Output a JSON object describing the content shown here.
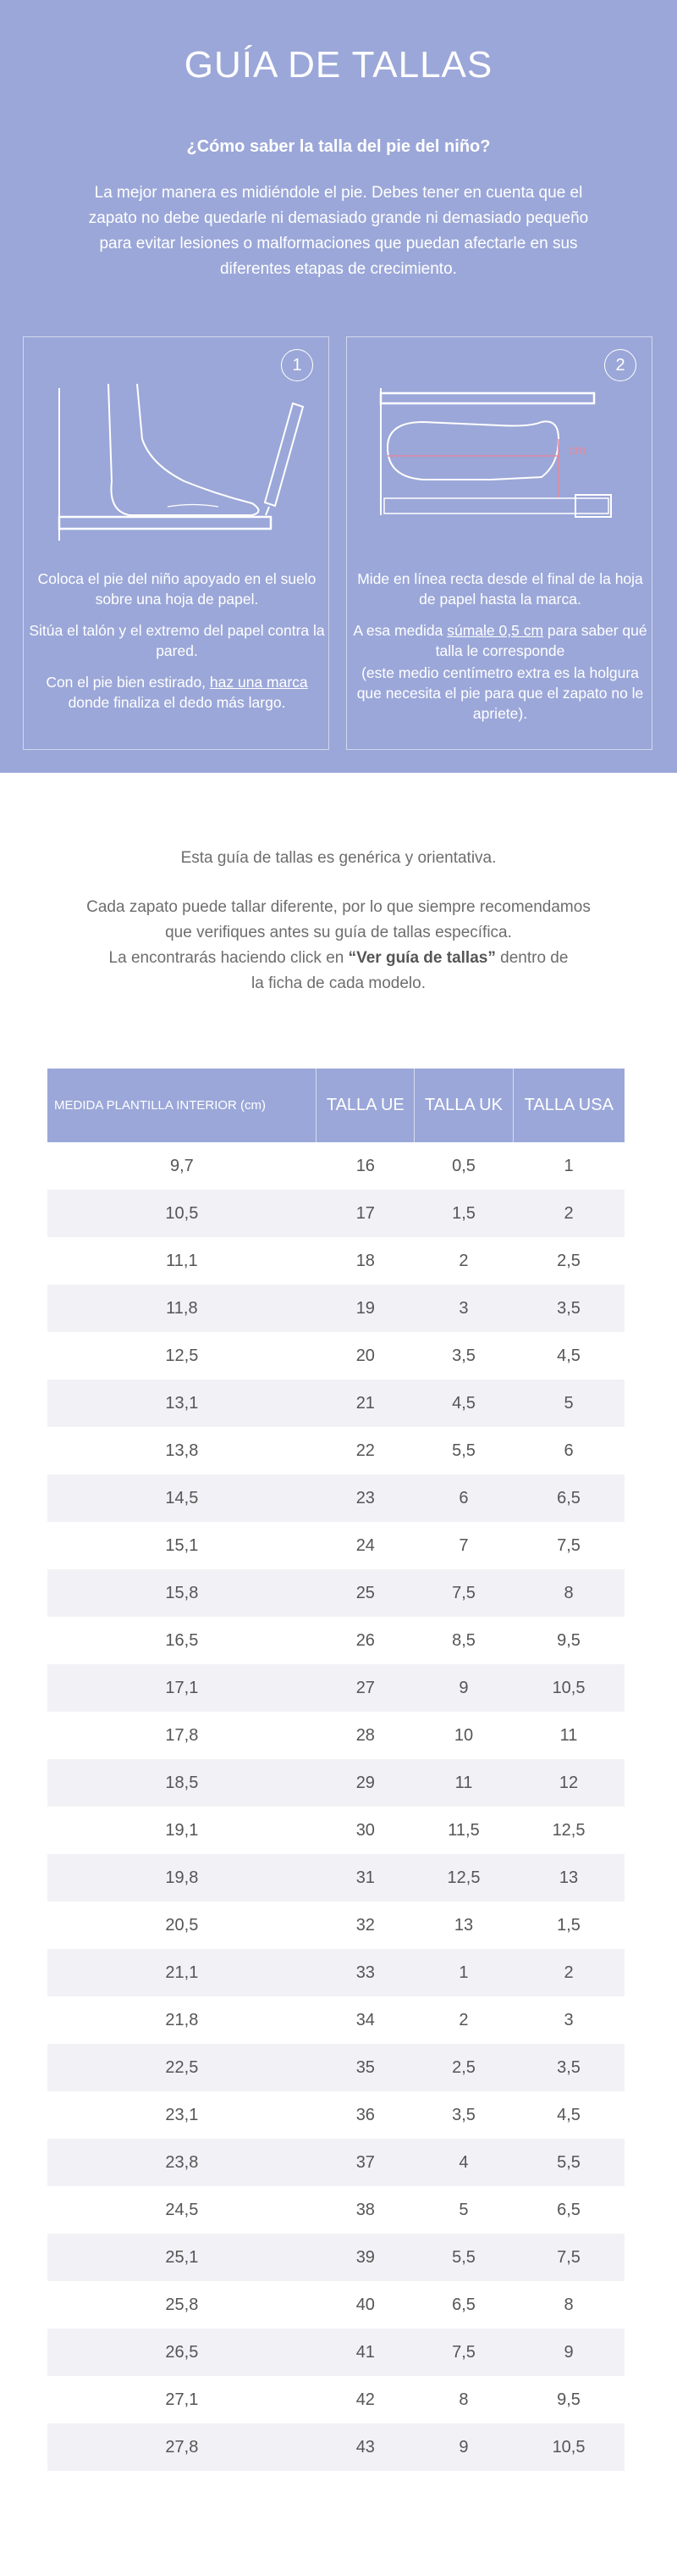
{
  "header": {
    "title": "GUÍA DE TALLAS",
    "subtitle": "¿Cómo saber la talla del pie del niño?",
    "intro": "La mejor manera es midiéndole el pie. Debes tener en cuenta que el zapato no debe quedarle ni demasiado grande ni demasiado pequeño para evitar lesiones o malformaciones que puedan afectarle en sus diferentes etapas de crecimiento."
  },
  "steps": [
    {
      "number": "1",
      "paragraphs": [
        "Coloca el pie del niño apoyado en el suelo sobre una hoja de papel.",
        "Sitúa el talón y el extremo del papel contra la pared."
      ],
      "last": {
        "before": "Con el pie bien estirado, ",
        "link": "haz una marca",
        "after": " donde finaliza el dedo más largo."
      }
    },
    {
      "number": "2",
      "illustration_unit": "cm",
      "paragraphs": [
        "Mide en línea recta desde el final de la hoja de papel hasta la marca."
      ],
      "measure": {
        "before": "A esa medida ",
        "link": "súmale 0,5 cm",
        "after": " para saber qué talla le corresponde"
      },
      "note": "(este medio centímetro extra es la holgura que necesita el pie para que el zapato no le apriete)."
    }
  ],
  "info": {
    "line1": "Esta guía de tallas es genérica y orientativa.",
    "line2": "Cada zapato puede tallar diferente, por lo que siempre recomendamos que verifiques antes su guía de tallas específica.",
    "line3_before": "La encontrarás haciendo click en ",
    "line3_bold": "“Ver guía de tallas”",
    "line3_after": " dentro de la ficha de cada modelo."
  },
  "table": {
    "headers": [
      "MEDIDA PLANTILLA INTERIOR (cm)",
      "TALLA UE",
      "TALLA UK",
      "TALLA USA"
    ],
    "rows": [
      [
        "9,7",
        "16",
        "0,5",
        "1"
      ],
      [
        "10,5",
        "17",
        "1,5",
        "2"
      ],
      [
        "11,1",
        "18",
        "2",
        "2,5"
      ],
      [
        "11,8",
        "19",
        "3",
        "3,5"
      ],
      [
        "12,5",
        "20",
        "3,5",
        "4,5"
      ],
      [
        "13,1",
        "21",
        "4,5",
        "5"
      ],
      [
        "13,8",
        "22",
        "5,5",
        "6"
      ],
      [
        "14,5",
        "23",
        "6",
        "6,5"
      ],
      [
        "15,1",
        "24",
        "7",
        "7,5"
      ],
      [
        "15,8",
        "25",
        "7,5",
        "8"
      ],
      [
        "16,5",
        "26",
        "8,5",
        "9,5"
      ],
      [
        "17,1",
        "27",
        "9",
        "10,5"
      ],
      [
        "17,8",
        "28",
        "10",
        "11"
      ],
      [
        "18,5",
        "29",
        "11",
        "12"
      ],
      [
        "19,1",
        "30",
        "11,5",
        "12,5"
      ],
      [
        "19,8",
        "31",
        "12,5",
        "13"
      ],
      [
        "20,5",
        "32",
        "13",
        "1,5"
      ],
      [
        "21,1",
        "33",
        "1",
        "2"
      ],
      [
        "21,8",
        "34",
        "2",
        "3"
      ],
      [
        "22,5",
        "35",
        "2,5",
        "3,5"
      ],
      [
        "23,1",
        "36",
        "3,5",
        "4,5"
      ],
      [
        "23,8",
        "37",
        "4",
        "5,5"
      ],
      [
        "24,5",
        "38",
        "5",
        "6,5"
      ],
      [
        "25,1",
        "39",
        "5,5",
        "7,5"
      ],
      [
        "25,8",
        "40",
        "6,5",
        "8"
      ],
      [
        "26,5",
        "41",
        "7,5",
        "9"
      ],
      [
        "27,1",
        "42",
        "8",
        "9,5"
      ],
      [
        "27,8",
        "43",
        "9",
        "10,5"
      ]
    ]
  }
}
